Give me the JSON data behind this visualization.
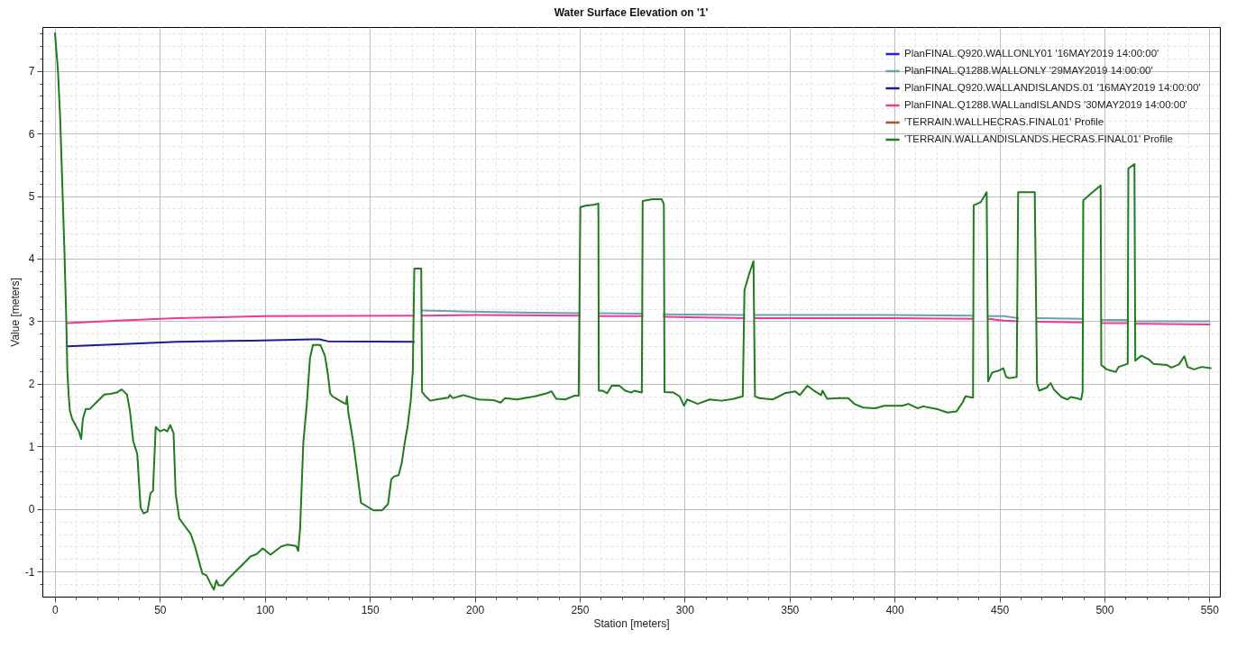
{
  "chart_data": {
    "type": "line",
    "title": "Water Surface Elevation on '1'",
    "xlabel": "Station [meters]",
    "ylabel": "Value [meters]",
    "xlim": [
      -6,
      555
    ],
    "ylim": [
      -1.4,
      7.7
    ],
    "xticks": [
      0,
      {
        "value": 10,
        "label": null
      },
      {
        "value": 20,
        "label": null
      },
      {
        "value": 30,
        "label": null
      },
      {
        "value": 40,
        "label": null
      },
      50,
      {
        "value": 60,
        "label": null
      },
      {
        "value": 70,
        "label": null
      },
      {
        "value": 80,
        "label": null
      },
      {
        "value": 90,
        "label": null
      },
      100,
      {
        "value": 110,
        "label": null
      },
      {
        "value": 120,
        "label": null
      },
      {
        "value": 130,
        "label": null
      },
      {
        "value": 140,
        "label": null
      },
      150,
      {
        "value": 160,
        "label": null
      },
      {
        "value": 170,
        "label": null
      },
      {
        "value": 180,
        "label": null
      },
      {
        "value": 190,
        "label": null
      },
      200,
      {
        "value": 210,
        "label": null
      },
      {
        "value": 220,
        "label": null
      },
      {
        "value": 230,
        "label": null
      },
      {
        "value": 240,
        "label": null
      },
      250,
      {
        "value": 260,
        "label": null
      },
      {
        "value": 270,
        "label": null
      },
      {
        "value": 280,
        "label": null
      },
      {
        "value": 290,
        "label": null
      },
      300,
      {
        "value": 310,
        "label": null
      },
      {
        "value": 320,
        "label": null
      },
      {
        "value": 330,
        "label": null
      },
      {
        "value": 340,
        "label": null
      },
      350,
      {
        "value": 360,
        "label": null
      },
      {
        "value": 370,
        "label": null
      },
      {
        "value": 380,
        "label": null
      },
      {
        "value": 390,
        "label": null
      },
      400,
      {
        "value": 410,
        "label": null
      },
      {
        "value": 420,
        "label": null
      },
      {
        "value": 430,
        "label": null
      },
      {
        "value": 440,
        "label": null
      },
      450,
      {
        "value": 460,
        "label": null
      },
      {
        "value": 470,
        "label": null
      },
      {
        "value": 480,
        "label": null
      },
      {
        "value": 490,
        "label": null
      },
      500,
      {
        "value": 510,
        "label": null
      },
      {
        "value": 520,
        "label": null
      },
      {
        "value": 530,
        "label": null
      },
      {
        "value": 540,
        "label": null
      },
      550
    ],
    "yticks": [
      {
        "value": -1.2,
        "label": null
      },
      -1,
      {
        "value": -0.8,
        "label": null
      },
      {
        "value": -0.6,
        "label": null
      },
      {
        "value": -0.4,
        "label": null
      },
      {
        "value": -0.2,
        "label": null
      },
      0,
      {
        "value": 0.2,
        "label": null
      },
      {
        "value": 0.4,
        "label": null
      },
      {
        "value": 0.6,
        "label": null
      },
      {
        "value": 0.8,
        "label": null
      },
      1,
      {
        "value": 1.2,
        "label": null
      },
      {
        "value": 1.4,
        "label": null
      },
      {
        "value": 1.6,
        "label": null
      },
      {
        "value": 1.8,
        "label": null
      },
      2,
      {
        "value": 2.2,
        "label": null
      },
      {
        "value": 2.4,
        "label": null
      },
      {
        "value": 2.6,
        "label": null
      },
      {
        "value": 2.8,
        "label": null
      },
      3,
      {
        "value": 3.2,
        "label": null
      },
      {
        "value": 3.4,
        "label": null
      },
      {
        "value": 3.6,
        "label": null
      },
      {
        "value": 3.8,
        "label": null
      },
      4,
      {
        "value": 4.2,
        "label": null
      },
      {
        "value": 4.4,
        "label": null
      },
      {
        "value": 4.6,
        "label": null
      },
      {
        "value": 4.8,
        "label": null
      },
      5,
      {
        "value": 5.2,
        "label": null
      },
      {
        "value": 5.4,
        "label": null
      },
      {
        "value": 5.6,
        "label": null
      },
      {
        "value": 5.8,
        "label": null
      },
      6,
      {
        "value": 6.2,
        "label": null
      },
      {
        "value": 6.4,
        "label": null
      },
      {
        "value": 6.6,
        "label": null
      },
      {
        "value": 6.8,
        "label": null
      },
      7,
      {
        "value": 7.2,
        "label": null
      },
      {
        "value": 7.4,
        "label": null
      },
      {
        "value": 7.6,
        "label": null
      }
    ],
    "grid": true,
    "legend": "top right",
    "series": [
      {
        "name": "PlanFINAL.Q920.WALLONLY01 '16MAY2019 14:00:00'",
        "color": "#1e1eff"
      },
      {
        "name": "PlanFINAL.Q1288.WALLONLY '29MAY2019 14:00:00'",
        "color": "#6aa2ac",
        "x": [
          175,
          190,
          221,
          250,
          254.5,
          259,
          280,
          285,
          290,
          328.5,
          331,
          333.5,
          395,
          437.5,
          441,
          444.6,
          452,
          458.9,
          463,
          468,
          489.9,
          494,
          498.5,
          511.2,
          513,
          514.7,
          550
        ],
        "values": [
          3.17,
          3.16,
          3.14,
          3.13,
          null,
          3.13,
          3.12,
          null,
          3.11,
          3.1,
          null,
          3.1,
          3.1,
          3.09,
          null,
          3.08,
          3.08,
          3.05,
          null,
          3.05,
          3.04,
          null,
          3.02,
          3.02,
          null,
          3.0,
          3.0
        ]
      },
      {
        "name": "PlanFINAL.Q920.WALLANDISLANDS.01 '16MAY2019 14:00:00'",
        "color": "#1a1a9c",
        "x": [
          6,
          30,
          58,
          94,
          123,
          126,
          130,
          171
        ],
        "values": [
          2.6,
          2.63,
          2.67,
          2.69,
          2.71,
          2.71,
          2.68,
          2.67
        ]
      },
      {
        "name": "PlanFINAL.Q1288.WALLandISLANDS '30MAY2019 14:00:00'",
        "color": "#f0389a",
        "x": [
          6,
          30,
          58,
          100,
          171,
          173,
          175,
          200,
          250,
          254.5,
          259,
          280,
          285,
          290,
          328.5,
          331,
          333.5,
          400,
          437.5,
          441,
          444.6,
          452,
          458.9,
          463,
          468,
          489.9,
          494,
          498.5,
          511.2,
          513,
          514.7,
          550
        ],
        "values": [
          2.97,
          3.01,
          3.05,
          3.08,
          3.09,
          null,
          3.09,
          3.1,
          3.09,
          null,
          3.08,
          3.08,
          null,
          3.07,
          3.05,
          null,
          3.05,
          3.05,
          3.04,
          null,
          3.04,
          3.01,
          3.0,
          null,
          2.99,
          2.98,
          null,
          2.97,
          2.97,
          null,
          2.96,
          2.95
        ]
      },
      {
        "name": "'TERRAIN.WALLHECRAS.FINAL01' Profile",
        "color": "#b84a42"
      },
      {
        "name": "'TERRAIN.WALLANDISLANDS.HECRAS.FINAL01' Profile",
        "color": "#1e7b1e",
        "x": [
          0,
          1.4,
          2.5,
          3.5,
          4.5,
          5.3,
          5.9,
          6.5,
          7.1,
          8.2,
          9.8,
          11.4,
          12.5,
          13.3,
          14.7,
          16.7,
          19.6,
          23.5,
          26.5,
          29.4,
          31.8,
          34.3,
          35.7,
          37.3,
          39.2,
          40.8,
          42.2,
          44.1,
          45.5,
          46.7,
          48,
          50,
          52,
          53.5,
          54.9,
          56.5,
          57.5,
          59.2,
          61.8,
          64.7,
          66.7,
          68.6,
          70.2,
          72.2,
          74.1,
          75.7,
          76.9,
          78,
          80,
          82.4,
          86.3,
          90.2,
          93.1,
          96.1,
          99,
          102.7,
          107.7,
          110.6,
          114.9,
          115.9,
          116.8,
          118.3,
          120,
          121.5,
          122.9,
          126.5,
          128.6,
          130,
          131.1,
          132.2,
          137.2,
          138.7,
          139.1,
          139.8,
          140.8,
          142.2,
          143.7,
          145.8,
          148.7,
          151.6,
          155.9,
          158.7,
          160.2,
          161.6,
          163.7,
          165.2,
          166.6,
          168.1,
          169.5,
          170.5,
          171.2,
          174.5,
          174.9,
          176.6,
          178.8,
          181.7,
          187.4,
          188.2,
          189.6,
          194.6,
          201.8,
          209,
          212.3,
          214.4,
          220.1,
          228.7,
          234.5,
          236.6,
          238.8,
          243.1,
          247.4,
          249.5,
          250.3,
          253.1,
          256.7,
          258.9,
          259.1,
          261,
          263.1,
          265.3,
          268.9,
          271.7,
          274.6,
          276,
          279.6,
          280,
          284.7,
          289,
          290.1,
          290.4,
          294.7,
          297.6,
          299.7,
          301.2,
          306.2,
          311.9,
          317.7,
          323.4,
          327.7,
          328.5,
          330.6,
          332.8,
          333.5,
          335.6,
          342.1,
          347.7,
          352.7,
          354.9,
          358.5,
          362.1,
          365,
          365.7,
          367.9,
          373.6,
          377.9,
          380.8,
          385.1,
          390.8,
          395.1,
          403.7,
          406.6,
          410.9,
          413.7,
          420.9,
          425.2,
          429.5,
          432.4,
          433.8,
          437.4,
          437.7,
          441,
          443.9,
          444.6,
          446.5,
          449.6,
          451.8,
          453.2,
          454.7,
          458.2,
          458.9,
          466.8,
          467.9,
          468.9,
          472.5,
          474.4,
          475.9,
          479.5,
          482.4,
          483.9,
          486.7,
          488.9,
          489.6,
          489.9,
          493.2,
          498.2,
          498.5,
          501.1,
          505.4,
          506.8,
          511.1,
          511.4,
          514.3,
          514.7,
          517.6,
          521.2,
          523.3,
          529.8,
          531.9,
          535.5,
          538.1,
          539.6,
          542.7,
          546.3,
          550.6
        ],
        "values": [
          7.6,
          7.02,
          6.23,
          5.18,
          4.13,
          3.14,
          2.22,
          1.83,
          1.57,
          1.44,
          1.34,
          1.24,
          1.12,
          1.44,
          1.6,
          1.6,
          1.7,
          1.83,
          1.84,
          1.86,
          1.91,
          1.83,
          1.57,
          1.08,
          0.88,
          0.02,
          -0.07,
          -0.04,
          0.25,
          0.29,
          1.31,
          1.24,
          1.27,
          1.24,
          1.34,
          1.21,
          0.25,
          -0.15,
          -0.27,
          -0.4,
          -0.6,
          -0.83,
          -1.03,
          -1.06,
          -1.19,
          -1.29,
          -1.14,
          -1.22,
          -1.22,
          -1.12,
          -0.99,
          -0.86,
          -0.76,
          -0.72,
          -0.63,
          -0.73,
          -0.6,
          -0.57,
          -0.59,
          -0.67,
          -0.31,
          1.05,
          1.68,
          2.41,
          2.62,
          2.62,
          2.45,
          2.16,
          1.85,
          1.8,
          1.7,
          1.68,
          1.8,
          1.53,
          1.34,
          1.05,
          0.66,
          0.1,
          0.04,
          -0.02,
          -0.02,
          0.08,
          0.47,
          0.52,
          0.54,
          0.73,
          1.05,
          1.34,
          1.73,
          2.21,
          3.84,
          3.84,
          1.87,
          1.8,
          1.73,
          1.75,
          1.78,
          1.82,
          1.77,
          1.82,
          1.75,
          1.74,
          1.7,
          1.77,
          1.75,
          1.8,
          1.85,
          1.88,
          1.76,
          1.75,
          1.81,
          1.81,
          4.82,
          4.85,
          4.86,
          4.88,
          1.89,
          1.89,
          1.85,
          1.97,
          1.97,
          1.89,
          1.86,
          1.89,
          1.86,
          4.92,
          4.95,
          4.95,
          4.87,
          1.87,
          1.86,
          1.8,
          1.65,
          1.75,
          1.68,
          1.75,
          1.73,
          1.76,
          1.8,
          3.5,
          3.74,
          3.96,
          1.8,
          1.77,
          1.75,
          1.85,
          1.88,
          1.82,
          1.97,
          1.88,
          1.82,
          1.89,
          1.76,
          1.77,
          1.77,
          1.68,
          1.62,
          1.61,
          1.65,
          1.65,
          1.68,
          1.61,
          1.64,
          1.59,
          1.54,
          1.56,
          1.7,
          1.8,
          1.78,
          4.85,
          4.9,
          5.06,
          2.04,
          2.18,
          2.21,
          2.25,
          2.11,
          2.09,
          2.11,
          5.06,
          5.06,
          2.01,
          1.89,
          1.94,
          2.01,
          1.91,
          1.79,
          1.75,
          1.79,
          1.77,
          1.75,
          1.87,
          4.93,
          5.03,
          5.17,
          2.3,
          2.23,
          2.19,
          2.27,
          2.32,
          5.44,
          5.51,
          2.37,
          2.45,
          2.39,
          2.32,
          2.3,
          2.26,
          2.31,
          2.44,
          2.27,
          2.23,
          2.27,
          2.25
        ]
      }
    ]
  }
}
